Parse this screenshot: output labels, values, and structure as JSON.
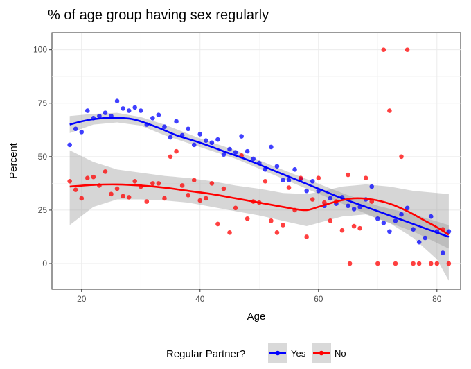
{
  "chart_data": {
    "type": "scatter",
    "title": "% of age group having sex regularly",
    "xlabel": "Age",
    "ylabel": "Percent",
    "xlim": [
      15,
      84
    ],
    "ylim": [
      -12,
      108
    ],
    "xticks": [
      20,
      40,
      60,
      80
    ],
    "yticks": [
      0,
      25,
      50,
      75,
      100
    ],
    "grid": true,
    "legend_title": "Regular Partner?",
    "legend_position": "bottom",
    "smoother": "loess with grey confidence band",
    "series": [
      {
        "name": "Yes",
        "color": "#0000ff",
        "points": [
          [
            18,
            55.5
          ],
          [
            19,
            63
          ],
          [
            20,
            61.5
          ],
          [
            21,
            71.5
          ],
          [
            22,
            68
          ],
          [
            23,
            69
          ],
          [
            24,
            70.5
          ],
          [
            25,
            69
          ],
          [
            26,
            76
          ],
          [
            27,
            72.5
          ],
          [
            28,
            71.5
          ],
          [
            29,
            73
          ],
          [
            30,
            71.5
          ],
          [
            31,
            65
          ],
          [
            32,
            68
          ],
          [
            33,
            69.5
          ],
          [
            34,
            64
          ],
          [
            35,
            59
          ],
          [
            36,
            66.5
          ],
          [
            37,
            60
          ],
          [
            38,
            63
          ],
          [
            39,
            55.5
          ],
          [
            40,
            60.5
          ],
          [
            41,
            57.5
          ],
          [
            42,
            56.5
          ],
          [
            43,
            58
          ],
          [
            44,
            51
          ],
          [
            45,
            53.5
          ],
          [
            46,
            52
          ],
          [
            47,
            59.5
          ],
          [
            48,
            52.5
          ],
          [
            49,
            49
          ],
          [
            50,
            47
          ],
          [
            51,
            44
          ],
          [
            52,
            54.5
          ],
          [
            53,
            45.5
          ],
          [
            54,
            39
          ],
          [
            55,
            39
          ],
          [
            56,
            44
          ],
          [
            57,
            39.5
          ],
          [
            58,
            34
          ],
          [
            59,
            38.5
          ],
          [
            60,
            34
          ],
          [
            61,
            27
          ],
          [
            62,
            30.5
          ],
          [
            63,
            28
          ],
          [
            64,
            31
          ],
          [
            65,
            27
          ],
          [
            66,
            25.5
          ],
          [
            67,
            26.5
          ],
          [
            68,
            30
          ],
          [
            69,
            36
          ],
          [
            70,
            21
          ],
          [
            71,
            19
          ],
          [
            72,
            15
          ],
          [
            73,
            20
          ],
          [
            74,
            23
          ],
          [
            75,
            26
          ],
          [
            76,
            16
          ],
          [
            77,
            10
          ],
          [
            78,
            12
          ],
          [
            79,
            22
          ],
          [
            80,
            15
          ],
          [
            81,
            5
          ],
          [
            82,
            15
          ]
        ],
        "smooth": [
          [
            18,
            65
          ],
          [
            20,
            66.5
          ],
          [
            22,
            67.5
          ],
          [
            25,
            68.2
          ],
          [
            28,
            67.8
          ],
          [
            30,
            66.5
          ],
          [
            33,
            63.5
          ],
          [
            36,
            60
          ],
          [
            40,
            56.5
          ],
          [
            44,
            52.5
          ],
          [
            48,
            48.5
          ],
          [
            52,
            44
          ],
          [
            56,
            39.5
          ],
          [
            60,
            35
          ],
          [
            64,
            30.5
          ],
          [
            68,
            26.5
          ],
          [
            72,
            22.5
          ],
          [
            76,
            18.5
          ],
          [
            80,
            14.5
          ],
          [
            82,
            12.5
          ]
        ],
        "band": [
          [
            18,
            69,
            61
          ],
          [
            22,
            70,
            65
          ],
          [
            26,
            70.5,
            66
          ],
          [
            30,
            68.5,
            64.5
          ],
          [
            34,
            65,
            60
          ],
          [
            40,
            58.5,
            54.5
          ],
          [
            46,
            53,
            49
          ],
          [
            52,
            46,
            42
          ],
          [
            58,
            39.5,
            35
          ],
          [
            64,
            33,
            28
          ],
          [
            70,
            27,
            21
          ],
          [
            76,
            23,
            15
          ],
          [
            82,
            18,
            7
          ]
        ]
      },
      {
        "name": "No",
        "color": "#ff0000",
        "points": [
          [
            18,
            38.5
          ],
          [
            19,
            34.5
          ],
          [
            20,
            30.5
          ],
          [
            21,
            40
          ],
          [
            22,
            40.5
          ],
          [
            23,
            36.5
          ],
          [
            24,
            43
          ],
          [
            25,
            32.5
          ],
          [
            26,
            35
          ],
          [
            27,
            31.5
          ],
          [
            28,
            31
          ],
          [
            29,
            38.5
          ],
          [
            30,
            36
          ],
          [
            31,
            29
          ],
          [
            32,
            37.5
          ],
          [
            33,
            37.5
          ],
          [
            34,
            30.5
          ],
          [
            35,
            50
          ],
          [
            36,
            52.5
          ],
          [
            37,
            36.5
          ],
          [
            38,
            32
          ],
          [
            39,
            39
          ],
          [
            40,
            29.5
          ],
          [
            41,
            30.5
          ],
          [
            42,
            37.5
          ],
          [
            43,
            18.5
          ],
          [
            44,
            35
          ],
          [
            45,
            14.5
          ],
          [
            46,
            26
          ],
          [
            47,
            50.5
          ],
          [
            48,
            21
          ],
          [
            49,
            29
          ],
          [
            50,
            28.5
          ],
          [
            51,
            38.5
          ],
          [
            52,
            20
          ],
          [
            53,
            14.5
          ],
          [
            54,
            18
          ],
          [
            55,
            35.5
          ],
          [
            56,
            25
          ],
          [
            57,
            40
          ],
          [
            58,
            12.5
          ],
          [
            59,
            30
          ],
          [
            60,
            40
          ],
          [
            61,
            28.5
          ],
          [
            62,
            20
          ],
          [
            63,
            29
          ],
          [
            64,
            15.5
          ],
          [
            65,
            41.5
          ],
          [
            65.3,
            0
          ],
          [
            66,
            17.5
          ],
          [
            67,
            16.5
          ],
          [
            68,
            40
          ],
          [
            69,
            29
          ],
          [
            70,
            0
          ],
          [
            71,
            100
          ],
          [
            72,
            71.5
          ],
          [
            73,
            0
          ],
          [
            74,
            50
          ],
          [
            75,
            100
          ],
          [
            76,
            0
          ],
          [
            77,
            0
          ],
          [
            79,
            0
          ],
          [
            80,
            0
          ],
          [
            81,
            16
          ],
          [
            82,
            0
          ]
        ],
        "smooth": [
          [
            18,
            36
          ],
          [
            22,
            36.8
          ],
          [
            26,
            37
          ],
          [
            30,
            36.5
          ],
          [
            34,
            35.5
          ],
          [
            38,
            34
          ],
          [
            42,
            32.5
          ],
          [
            46,
            30.5
          ],
          [
            50,
            28.5
          ],
          [
            54,
            26.5
          ],
          [
            56,
            25.5
          ],
          [
            58,
            25
          ],
          [
            60,
            26.5
          ],
          [
            63,
            29
          ],
          [
            66,
            30.5
          ],
          [
            69,
            30
          ],
          [
            72,
            28
          ],
          [
            75,
            24.5
          ],
          [
            78,
            20
          ],
          [
            80,
            17
          ],
          [
            82,
            13.5
          ]
        ],
        "band": [
          [
            18,
            53,
            18
          ],
          [
            22,
            47.5,
            26.5
          ],
          [
            26,
            44,
            30
          ],
          [
            30,
            42.5,
            30
          ],
          [
            34,
            41,
            29.5
          ],
          [
            38,
            40,
            28.5
          ],
          [
            42,
            38.5,
            26.5
          ],
          [
            46,
            36.5,
            24.5
          ],
          [
            50,
            35,
            22.5
          ],
          [
            54,
            33,
            20
          ],
          [
            58,
            32.5,
            17.5
          ],
          [
            60,
            33.5,
            19
          ],
          [
            64,
            36,
            22
          ],
          [
            68,
            37,
            23
          ],
          [
            72,
            36,
            19
          ],
          [
            76,
            34,
            12
          ],
          [
            80,
            33,
            2
          ],
          [
            82,
            32.5,
            -8
          ]
        ]
      }
    ]
  }
}
